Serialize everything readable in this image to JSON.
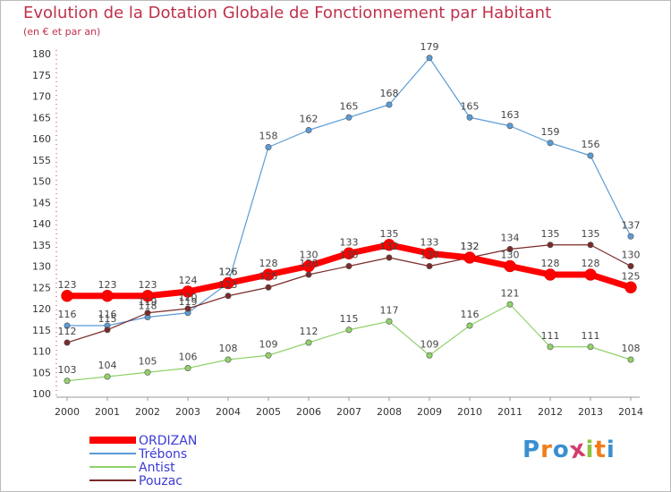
{
  "title": "Evolution de la Dotation Globale de Fonctionnement par Habitant",
  "subtitle": "(en € et par an)",
  "logo": {
    "text": "Proxiti",
    "colors": [
      "#3a8fd0",
      "#f07d1a",
      "#3a8fd0",
      "#d23c6e",
      "#8bc43f",
      "#f07d1a",
      "#3a8fd0"
    ]
  },
  "chart_data": {
    "type": "line",
    "title": "Evolution de la Dotation Globale de Fonctionnement par Habitant",
    "subtitle": "(en € et par an)",
    "x": [
      "2000",
      "2001",
      "2002",
      "2003",
      "2004",
      "2005",
      "2006",
      "2007",
      "2008",
      "2009",
      "2010",
      "2011",
      "2012",
      "2013",
      "2014"
    ],
    "ylim": [
      100,
      180
    ],
    "yticks": [
      100,
      105,
      110,
      115,
      120,
      125,
      130,
      135,
      140,
      145,
      150,
      155,
      160,
      165,
      170,
      175,
      180
    ],
    "grid": false,
    "legend_position": "bottom-left",
    "series": [
      {
        "name": "ORDIZAN",
        "color": "#ff0000",
        "values": [
          123,
          123,
          123,
          124,
          126,
          128,
          130,
          133,
          135,
          133,
          132,
          130,
          128,
          128,
          125
        ]
      },
      {
        "name": "Trébons",
        "color": "#5b9bd5",
        "values": [
          116,
          116,
          118,
          119,
          126,
          158,
          162,
          165,
          168,
          179,
          165,
          163,
          159,
          156,
          137
        ]
      },
      {
        "name": "Antist",
        "color": "#90d26a",
        "values": [
          103,
          104,
          105,
          106,
          108,
          109,
          112,
          115,
          117,
          109,
          116,
          121,
          111,
          111,
          108
        ]
      },
      {
        "name": "Pouzac",
        "color": "#7a2a2a",
        "values": [
          112,
          115,
          119,
          120,
          123,
          125,
          128,
          130,
          132,
          130,
          132,
          134,
          135,
          135,
          130
        ]
      }
    ]
  }
}
